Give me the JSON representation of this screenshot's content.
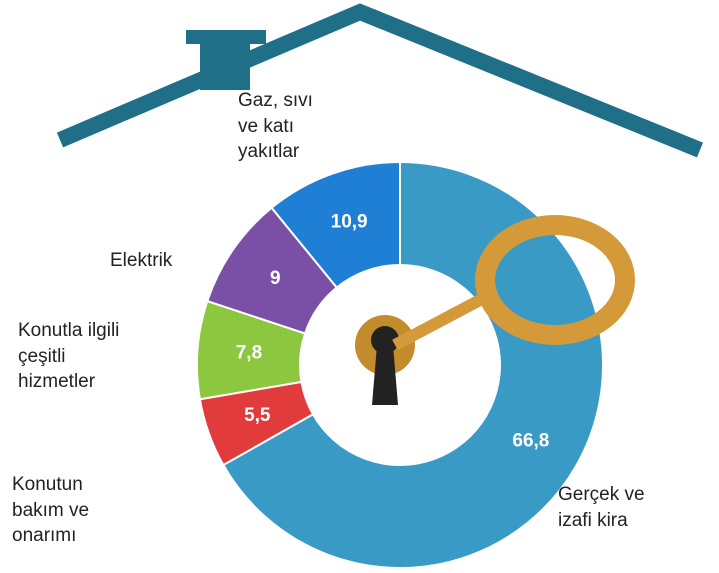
{
  "chart_data": {
    "type": "donut",
    "categories": [
      "Gerçek ve izafi kira",
      "Konutun bakım ve onarımı",
      "Konutla ilgili çeşitli hizmetler",
      "Elektrik",
      "Gaz, sıvı ve katı yakıtlar"
    ],
    "values": [
      66.8,
      5.5,
      7.8,
      9,
      10.9
    ],
    "value_labels": [
      "66,8",
      "5,5",
      "7,8",
      "9",
      "10,9"
    ],
    "colors": [
      "#3a9ac6",
      "#e23b3b",
      "#8dc63f",
      "#7a4fa6",
      "#1f7fd4"
    ]
  }
}
